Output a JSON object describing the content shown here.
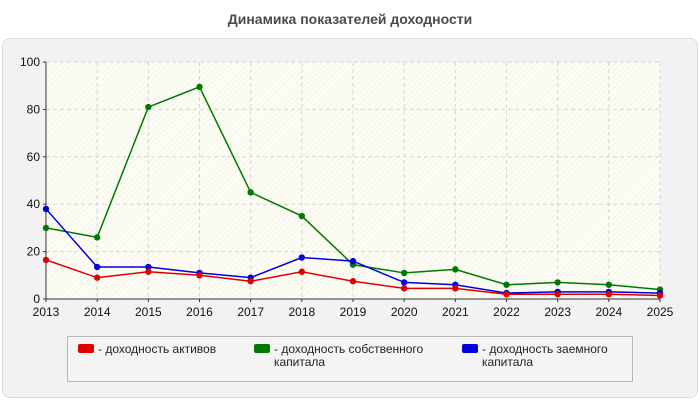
{
  "chart_data": {
    "type": "line",
    "title": "Динамика показателей доходности",
    "x": [
      "2013",
      "2014",
      "2015",
      "2016",
      "2017",
      "2018",
      "2019",
      "2020",
      "2021",
      "2022",
      "2023",
      "2024",
      "2025"
    ],
    "ylim": [
      0,
      100
    ],
    "yticks": [
      0,
      20,
      40,
      60,
      80,
      100
    ],
    "grid": true,
    "legend_position": "bottom",
    "series": [
      {
        "name": "- доходность активов",
        "color": "#e00000",
        "values": [
          16.5,
          9,
          11.5,
          10,
          7.5,
          11.5,
          7.5,
          4.5,
          4.5,
          2,
          2,
          2,
          1.5
        ]
      },
      {
        "name": "- доходность собственного капитала",
        "color": "#007a00",
        "values": [
          30,
          26,
          81,
          89.5,
          45,
          35,
          14.5,
          11,
          12.5,
          6,
          7,
          6,
          4
        ]
      },
      {
        "name": "- доходность заемного капитала",
        "color": "#0000dd",
        "values": [
          38,
          13.5,
          13.5,
          11,
          9,
          17.5,
          16,
          7,
          6,
          2.5,
          3,
          3,
          2.5
        ]
      }
    ]
  }
}
